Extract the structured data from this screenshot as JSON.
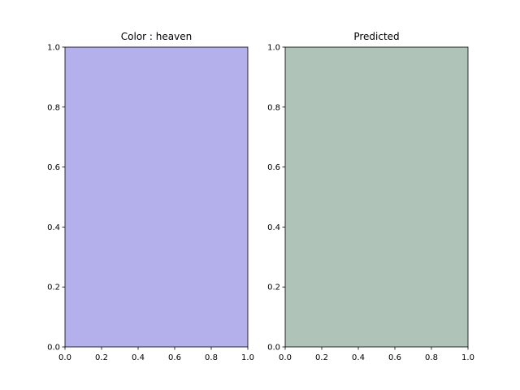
{
  "chart_data": [
    {
      "type": "swatch",
      "title": "Color : heaven",
      "fill_color": "#b3b0eb",
      "xlim": [
        0,
        1
      ],
      "ylim": [
        0,
        1
      ],
      "xticks": [
        "0.0",
        "0.2",
        "0.4",
        "0.6",
        "0.8",
        "1.0"
      ],
      "yticks": [
        "0.0",
        "0.2",
        "0.4",
        "0.6",
        "0.8",
        "1.0"
      ],
      "grid": false
    },
    {
      "type": "swatch",
      "title": "Predicted",
      "fill_color": "#afc3b8",
      "xlim": [
        0,
        1
      ],
      "ylim": [
        0,
        1
      ],
      "xticks": [
        "0.0",
        "0.2",
        "0.4",
        "0.6",
        "0.8",
        "1.0"
      ],
      "yticks": [
        "0.0",
        "0.2",
        "0.4",
        "0.6",
        "0.8",
        "1.0"
      ],
      "grid": false
    }
  ]
}
